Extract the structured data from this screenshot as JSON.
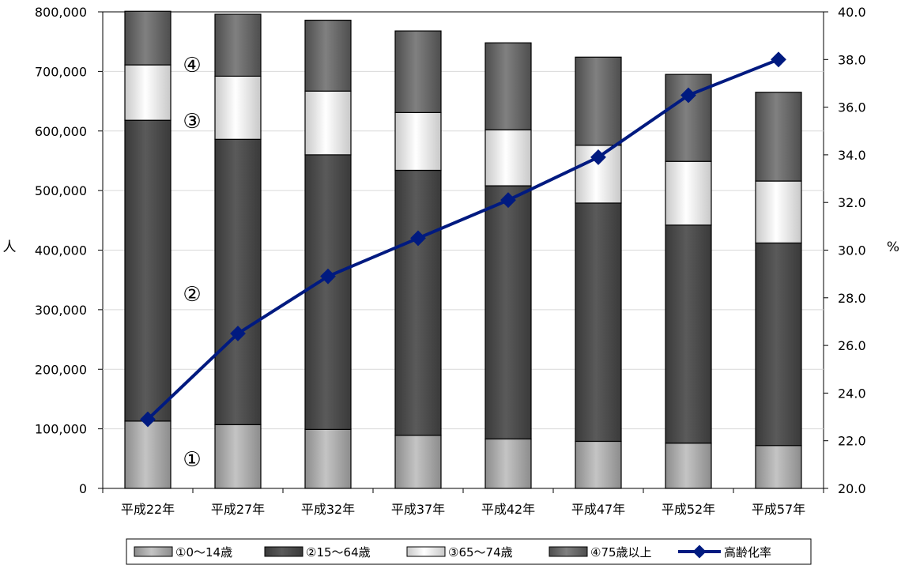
{
  "chart_data": {
    "type": "bar",
    "stacked": true,
    "categories": [
      "平成22年",
      "平成27年",
      "平成32年",
      "平成37年",
      "平成42年",
      "平成47年",
      "平成52年",
      "平成57年"
    ],
    "series": [
      {
        "name": "①0～14歳",
        "values": [
          113000,
          107000,
          99000,
          89000,
          83000,
          79000,
          76000,
          72000
        ],
        "color": "#a8a8a8"
      },
      {
        "name": "②15～64歳",
        "values": [
          505000,
          479000,
          461000,
          445000,
          425000,
          400000,
          366000,
          340000
        ],
        "color": "#4a4a4a"
      },
      {
        "name": "③65～74歳",
        "values": [
          93000,
          106000,
          107000,
          97000,
          94000,
          97000,
          107000,
          104000
        ],
        "color": "#e6e6e6"
      },
      {
        "name": "④75歳以上",
        "values": [
          90000,
          104000,
          119000,
          137000,
          146000,
          148000,
          146000,
          149000
        ],
        "color": "#6a6a6a"
      }
    ],
    "line_series": {
      "name": "高齢化率",
      "values": [
        22.9,
        26.5,
        28.9,
        30.5,
        32.1,
        33.9,
        36.5,
        38.0
      ],
      "color": "#001a80",
      "axis": "right"
    },
    "ylim": [
      0,
      800000
    ],
    "ytick_labels": [
      "0",
      "100,000",
      "200,000",
      "300,000",
      "400,000",
      "500,000",
      "600,000",
      "700,000",
      "800,000"
    ],
    "ylabel": "人",
    "y2lim": [
      20,
      40
    ],
    "y2tick_labels": [
      "20.0",
      "22.0",
      "24.0",
      "26.0",
      "28.0",
      "30.0",
      "32.0",
      "34.0",
      "36.0",
      "38.0",
      "40.0"
    ],
    "y2label": "%",
    "grid": true,
    "legend_position": "bottom",
    "annotations": [
      "①",
      "②",
      "③",
      "④"
    ]
  }
}
